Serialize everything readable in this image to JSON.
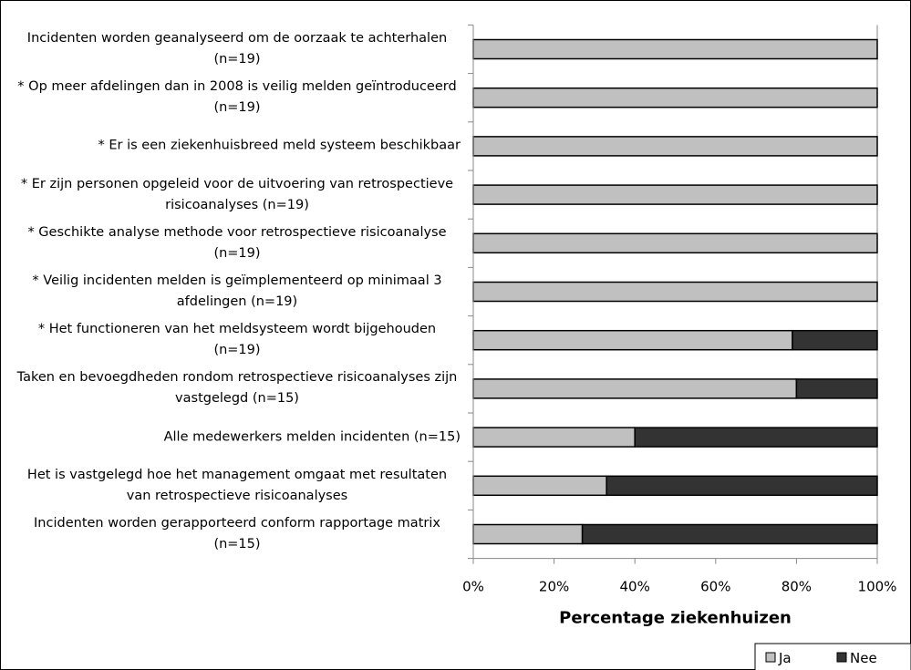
{
  "chart_data": {
    "type": "stacked_barh",
    "categories": [
      "Incidenten worden geanalyseerd om de oorzaak te achterhalen (n=19)",
      "* Op meer afdelingen dan in 2008 is veilig melden geïntroduceerd (n=19)",
      "* Er is een ziekenhuisbreed meld systeem beschikbaar",
      "* Er zijn personen opgeleid voor de uitvoering van retrospectieve risicoanalyses (n=19)",
      "* Geschikte analyse methode voor retrospectieve risicoanalyse (n=19)",
      "* Veilig incidenten melden is geïmplementeerd op minimaal 3 afdelingen (n=19)",
      "* Het functioneren van het meldsysteem wordt bijgehouden (n=19)",
      "Taken en bevoegdheden rondom retrospectieve risicoanalyses zijn vastgelegd (n=15)",
      "Alle medewerkers melden incidenten (n=15)",
      "Het is vastgelegd hoe het management omgaat met resultaten van retrospectieve risicoanalyses",
      "Incidenten worden gerapporteerd conform rapportage matrix (n=15)"
    ],
    "series": [
      {
        "name": "Ja",
        "color": "#c0c0c0",
        "values": [
          100,
          100,
          100,
          100,
          100,
          100,
          79,
          80,
          40,
          33,
          27
        ]
      },
      {
        "name": "Nee",
        "color": "#333333",
        "values": [
          0,
          0,
          0,
          0,
          0,
          0,
          21,
          20,
          60,
          67,
          73
        ]
      }
    ],
    "xlabel": "Percentage ziekenhuizen",
    "xlim": [
      0,
      100
    ],
    "xticks": [
      {
        "value": 0,
        "label": "0%"
      },
      {
        "value": 20,
        "label": "20%"
      },
      {
        "value": 40,
        "label": "40%"
      },
      {
        "value": 60,
        "label": "60%"
      },
      {
        "value": 80,
        "label": "80%"
      },
      {
        "value": 100,
        "label": "100%"
      }
    ],
    "legend": "bottom-right"
  }
}
